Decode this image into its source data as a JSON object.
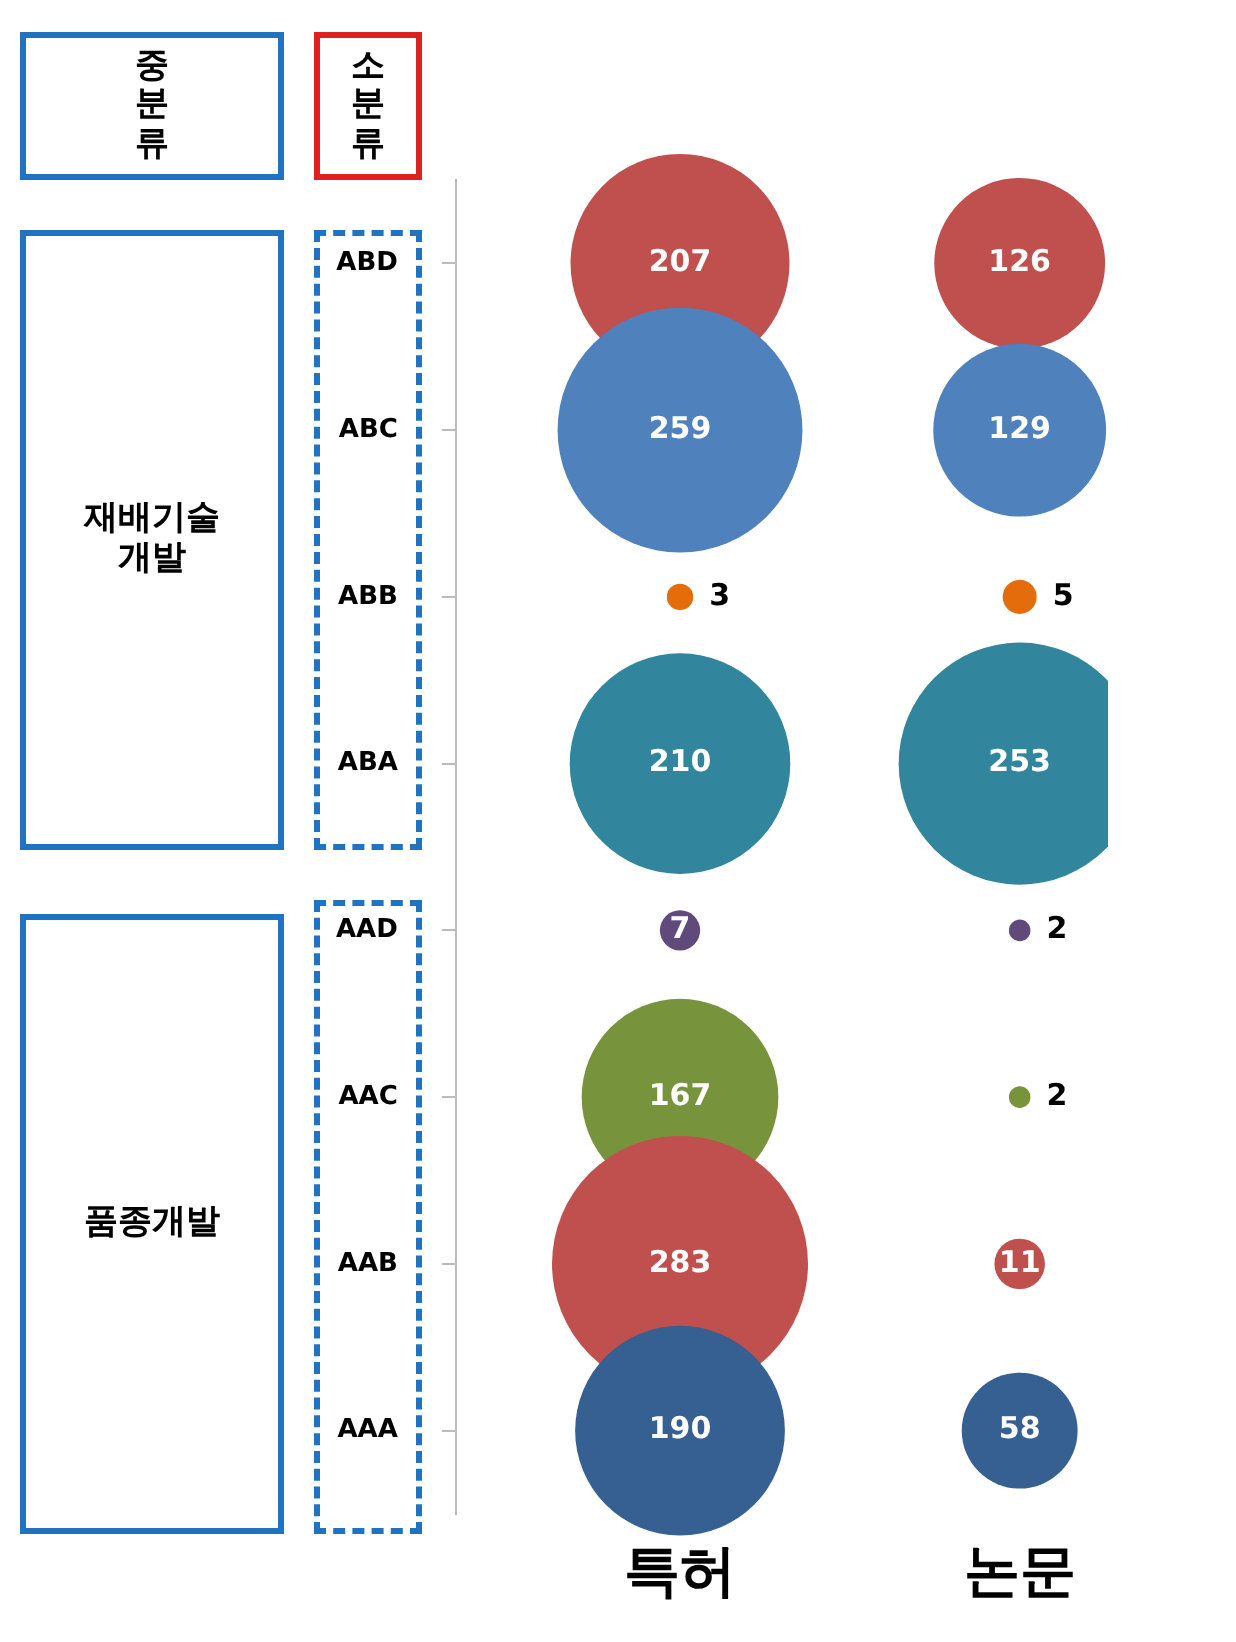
{
  "chart_data": {
    "type": "other",
    "categories": [
      "ABD",
      "ABC",
      "ABB",
      "ABA",
      "AAD",
      "AAC",
      "AAB",
      "AAA"
    ],
    "series": [
      {
        "name": "특허",
        "colors": [
          "#c0504d",
          "#4f81bd",
          "#e46c0a",
          "#31859c",
          "#604a7b",
          "#77933c",
          "#c0504d",
          "#366092"
        ],
        "values": [
          207,
          259,
          3,
          210,
          7,
          167,
          283,
          190
        ]
      },
      {
        "name": "논문",
        "colors": [
          "#c0504d",
          "#4f81bd",
          "#e46c0a",
          "#31859c",
          "#604a7b",
          "#77933c",
          "#c0504d",
          "#366092"
        ],
        "values": [
          126,
          129,
          5,
          253,
          2,
          2,
          11,
          58
        ]
      }
    ],
    "data_labels": true,
    "legend": false,
    "annotations": [
      "중분류",
      "소분류",
      "재배기술개발",
      "품종개발"
    ]
  }
}
